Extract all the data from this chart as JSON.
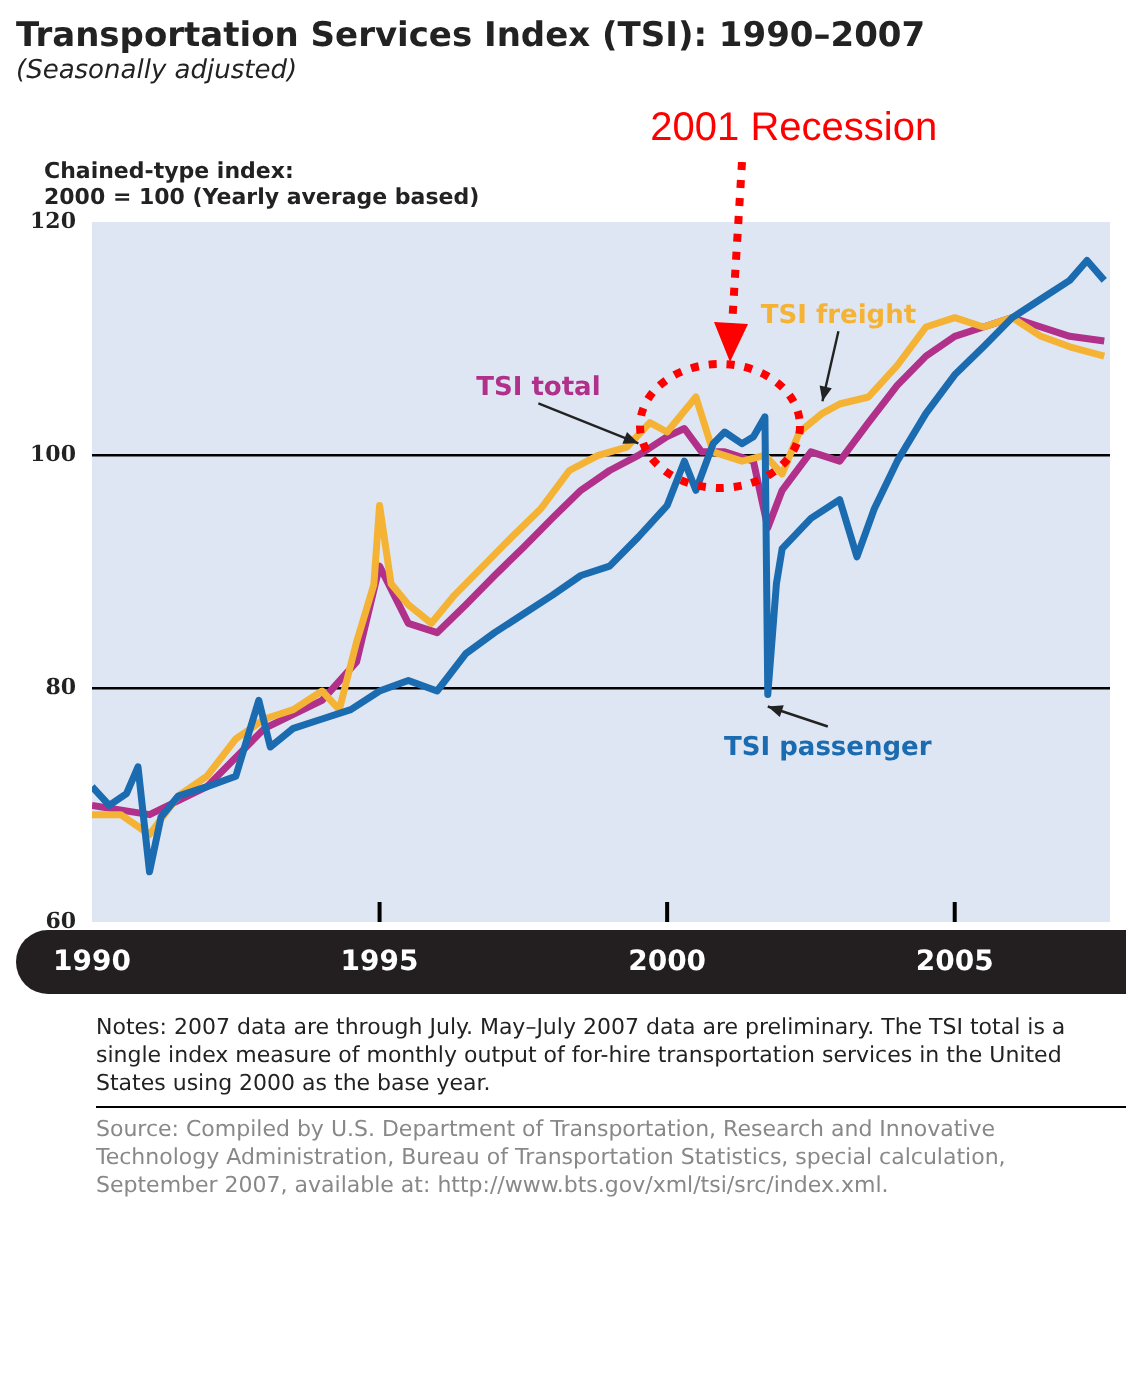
{
  "chart_data": {
    "type": "line",
    "title": "Transportation Services Index (TSI): 1990–2007",
    "subtitle": "(Seasonally adjusted)",
    "ylabel": "Chained-type index:\n2000 = 100 (Yearly average based)",
    "xlim": [
      1990,
      2007.7
    ],
    "xticks": [
      1990,
      1995,
      2000,
      2005
    ],
    "ylim": [
      60,
      120
    ],
    "yticks": [
      60,
      80,
      100,
      120
    ],
    "grid": "y",
    "legend": false,
    "marker": "none",
    "line_style": "solid",
    "series": [
      {
        "name": "TSI total",
        "color": "#b0308a",
        "x": [
          1990,
          1991,
          1992,
          1993,
          1994,
          1994.6,
          1995,
          1995.5,
          1996,
          1996.5,
          1997,
          1997.5,
          1998,
          1998.5,
          1999,
          1999.5,
          2000,
          2000.3,
          2000.6,
          2001,
          2001.5,
          2001.75,
          2002,
          2002.5,
          2003,
          2003.5,
          2004,
          2004.5,
          2005,
          2005.5,
          2006,
          2006.5,
          2007,
          2007.6
        ],
        "values": [
          70,
          69.2,
          71.6,
          76.6,
          79,
          82.3,
          90.5,
          85.6,
          84.8,
          87.2,
          89.7,
          92.1,
          94.6,
          97,
          98.7,
          100,
          101.6,
          102.3,
          100.3,
          100.3,
          99.5,
          93.8,
          97,
          100.3,
          99.5,
          102.8,
          106,
          108.5,
          110.2,
          111,
          111.8,
          111,
          110.2,
          109.8
        ]
      },
      {
        "name": "TSI freight",
        "color": "#f5b335",
        "x": [
          1990,
          1990.5,
          1991,
          1991.5,
          1992,
          1992.5,
          1993,
          1993.5,
          1994,
          1994.3,
          1994.6,
          1994.9,
          1995,
          1995.2,
          1995.5,
          1995.9,
          1996.3,
          1996.8,
          1997.3,
          1997.8,
          1998.3,
          1998.8,
          1999.3,
          1999.7,
          2000,
          2000.5,
          2000.8,
          2001.3,
          2001.7,
          2002,
          2002.3,
          2002.7,
          2003,
          2003.5,
          2004,
          2004.5,
          2005,
          2005.5,
          2006,
          2006.5,
          2007,
          2007.6
        ],
        "values": [
          69.2,
          69.2,
          67.5,
          70.8,
          72.5,
          75.7,
          77.4,
          78.2,
          79.8,
          78.2,
          84,
          88.9,
          95.7,
          89,
          87.2,
          85.6,
          88,
          90.5,
          93,
          95.4,
          98.7,
          100,
          100.7,
          102.8,
          102,
          105,
          100.3,
          99.5,
          100,
          98.4,
          102,
          103.6,
          104.4,
          105,
          107.7,
          111,
          111.8,
          111,
          111.8,
          110.2,
          109.3,
          108.5
        ]
      },
      {
        "name": "TSI passenger",
        "color": "#1a6bb0",
        "x": [
          1990,
          1990.3,
          1990.6,
          1990.8,
          1991,
          1991.2,
          1991.5,
          1992,
          1992.5,
          1992.9,
          1993.1,
          1993.5,
          1994,
          1994.5,
          1995,
          1995.5,
          1996,
          1996.5,
          1997,
          1997.5,
          1998,
          1998.5,
          1999,
          1999.5,
          2000,
          2000.3,
          2000.5,
          2000.8,
          2001,
          2001.3,
          2001.5,
          2001.7,
          2001.75,
          2001.9,
          2002,
          2002.5,
          2003,
          2003.3,
          2003.6,
          2004,
          2004.5,
          2005,
          2005.5,
          2006,
          2006.5,
          2007,
          2007.3,
          2007.6
        ],
        "values": [
          71.6,
          70,
          71,
          73.3,
          64.3,
          69,
          70.8,
          71.6,
          72.5,
          79,
          75,
          76.6,
          77.4,
          78.2,
          79.8,
          80.7,
          79.8,
          83,
          84.8,
          86.4,
          88,
          89.7,
          90.5,
          93,
          95.7,
          99.5,
          97,
          101,
          102,
          101,
          101.6,
          103.3,
          79.5,
          89,
          92,
          94.6,
          96.2,
          91.3,
          95.4,
          99.5,
          103.6,
          106.9,
          109.3,
          111.8,
          113.4,
          115,
          116.7,
          115
        ]
      }
    ],
    "annotations": [
      "2001 Recession",
      "Notes: 2007 data are through July. May–July 2007 data are preliminary. The TSI total is a single index measure of monthly output of for-hire transportation services in the United States using 2000 as the base year.",
      "Source: Compiled by U.S. Department of Transportation, Research and Innovative Technology Administration, Bureau of Transportation Statistics, special calculation, September 2007, available at: http://www.bts.gov/xml/tsi/src/index.xml."
    ]
  }
}
